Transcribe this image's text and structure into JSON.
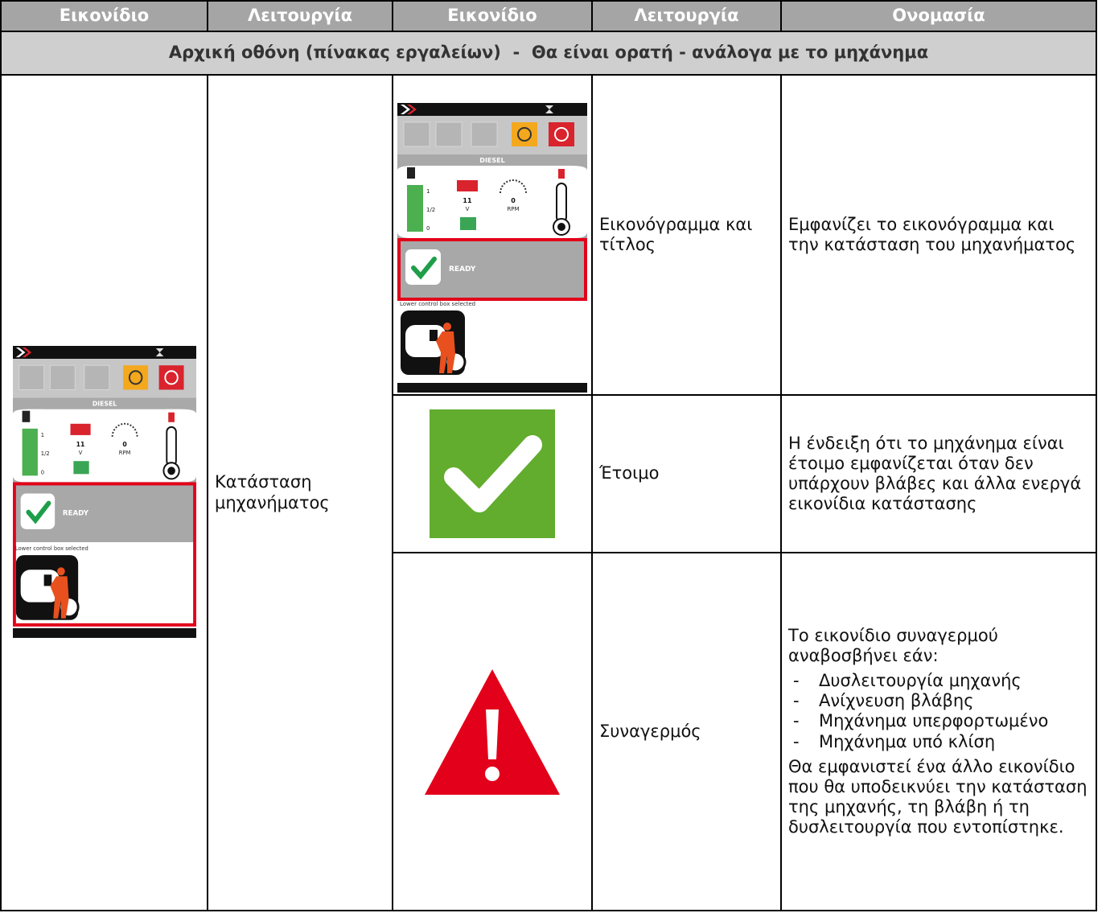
{
  "header": {
    "columns": [
      "Εικονίδιο",
      "Λειτουργία",
      "Εικονίδιο",
      "Λειτουργία",
      "Ονομασία"
    ]
  },
  "section_title": "Αρχική οθόνη (πίνακας εργαλείων)  -  Θα είναι ορατή - ανάλογα με το μηχάνημα",
  "main": {
    "function": "Κατάσταση μηχανήματος"
  },
  "rows": [
    {
      "function": "Εικονόγραμμα και τίτλος",
      "description": "Εμφανίζει το εικονόγραμμα και την κατάσταση του μηχανήματος"
    },
    {
      "function": "Έτοιμο",
      "description": "Η ένδειξη ότι το μηχάνημα είναι έτοιμο εμφανίζεται όταν δεν υπάρχουν βλάβες και άλλα ενεργά εικονίδια κατάστασης"
    },
    {
      "function": "Συναγερμός",
      "description_intro": "Το εικονίδιο συναγερμού αναβοσβήνει εάν:",
      "conditions": [
        "Δυσλειτουργία μηχανής",
        "Ανίχνευση βλάβης",
        "Μηχάνημα υπερφορτωμένο",
        "Μηχάνημα υπό κλίση"
      ],
      "description_outro": "Θα εμφανιστεί ένα άλλο εικονίδιο που θα υποδεικνύει την κατάσταση της μηχανής, τη βλάβη ή τη δυσλειτουργία που εντοπίστηκε."
    }
  ],
  "screen": {
    "engine": "DIESEL",
    "fuel_levels": [
      "1",
      "1/2",
      "0"
    ],
    "voltage": "11",
    "voltage_unit": "V",
    "rpm": "0",
    "rpm_unit": "RPM",
    "status": "READY",
    "caption": "Lower control box selected"
  }
}
